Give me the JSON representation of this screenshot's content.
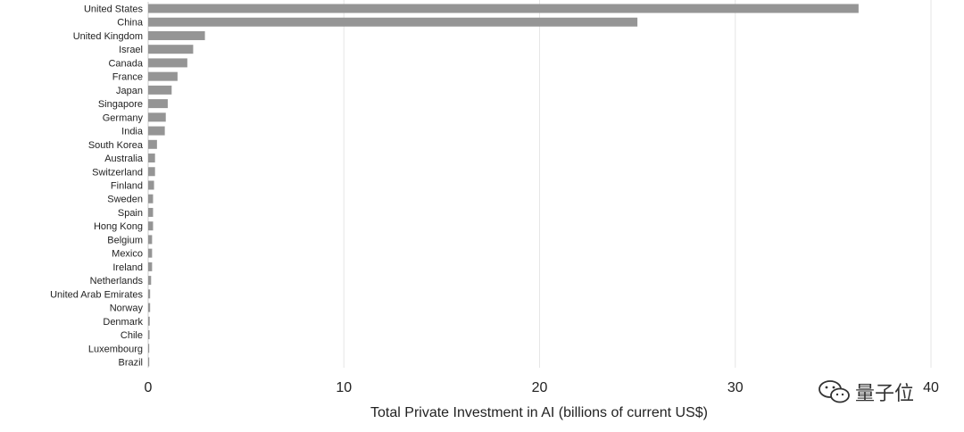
{
  "chart_data": {
    "type": "bar",
    "orientation": "horizontal",
    "title": "",
    "xlabel": "Total Private Investment in AI (billions of current US$)",
    "ylabel": "",
    "xlim": [
      0,
      40
    ],
    "xticks": [
      0,
      10,
      20,
      30,
      40
    ],
    "grid": "vertical",
    "bar_color": "#959595",
    "categories": [
      "United States",
      "China",
      "United Kingdom",
      "Israel",
      "Canada",
      "France",
      "Japan",
      "Singapore",
      "Germany",
      "India",
      "South Korea",
      "Australia",
      "Switzerland",
      "Finland",
      "Sweden",
      "Spain",
      "Hong Kong",
      "Belgium",
      "Mexico",
      "Ireland",
      "Netherlands",
      "United Arab Emirates",
      "Norway",
      "Denmark",
      "Chile",
      "Luxembourg",
      "Brazil"
    ],
    "values": [
      36.3,
      25.0,
      2.9,
      2.3,
      2.0,
      1.5,
      1.2,
      1.0,
      0.9,
      0.85,
      0.45,
      0.35,
      0.35,
      0.3,
      0.25,
      0.25,
      0.25,
      0.2,
      0.2,
      0.2,
      0.15,
      0.1,
      0.1,
      0.08,
      0.07,
      0.05,
      0.04
    ]
  },
  "watermark": {
    "text": "量子位",
    "icon": "wechat-icon"
  }
}
